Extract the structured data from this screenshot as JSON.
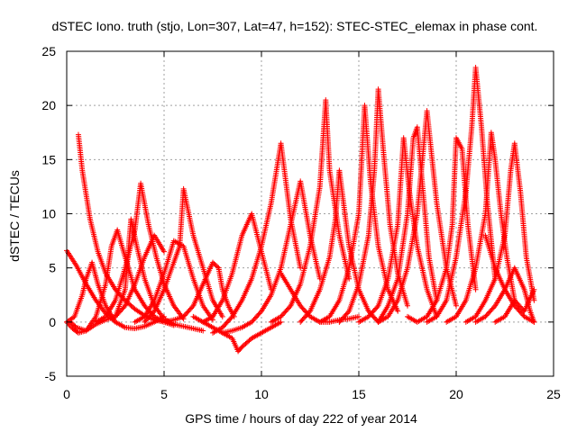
{
  "chart_data": {
    "type": "scatter",
    "title": "dSTEC Iono. truth (stjo, Lon=307, Lat=47, h=152): STEC-STEC_elemax in phase cont.",
    "xlabel": "GPS time / hours of day 222 of year 2014",
    "ylabel": "dSTEC  / TECUs",
    "xlim": [
      0,
      25
    ],
    "ylim": [
      -5,
      25
    ],
    "xticks": [
      0,
      5,
      10,
      15,
      20,
      25
    ],
    "yticks": [
      -5,
      0,
      5,
      10,
      15,
      20,
      25
    ],
    "grid": true,
    "marker": "plus",
    "color": "#ff0000",
    "series": [
      {
        "x": [
          0.0,
          0.5,
          1.0,
          1.5,
          2.0,
          2.5,
          3.0,
          3.5,
          4.0,
          4.5,
          5.0
        ],
        "y": [
          6.6,
          5.2,
          3.5,
          2.0,
          0.8,
          0.0,
          -0.5,
          -0.6,
          -0.4,
          0.0,
          0.5
        ]
      },
      {
        "x": [
          0.6,
          0.8,
          1.2,
          1.6,
          2.0,
          2.5,
          3.0,
          3.5,
          4.0,
          4.5,
          5.0,
          5.5,
          6.0,
          6.5,
          7.0
        ],
        "y": [
          17.3,
          14.0,
          9.5,
          6.5,
          4.5,
          3.0,
          2.0,
          1.2,
          0.6,
          0.2,
          0.0,
          -0.2,
          -0.4,
          -0.6,
          -0.8
        ]
      },
      {
        "x": [
          0.2,
          0.5,
          1.0,
          1.5,
          2.0,
          2.3,
          2.6,
          3.0,
          3.5,
          4.0,
          4.5,
          5.0,
          5.5
        ],
        "y": [
          0.0,
          -0.5,
          -0.8,
          0.5,
          3.5,
          7.0,
          8.5,
          6.0,
          3.0,
          1.5,
          0.5,
          0.0,
          -0.3
        ]
      },
      {
        "x": [
          0.0,
          0.3,
          0.6,
          1.0,
          1.5,
          2.0,
          2.5,
          3.0,
          3.5,
          4.0,
          4.5,
          5.0
        ],
        "y": [
          0.0,
          -0.6,
          -1.0,
          -0.8,
          -0.2,
          0.2,
          0.5,
          1.5,
          3.5,
          6.0,
          8.0,
          6.5
        ]
      },
      {
        "x": [
          0.0,
          0.4,
          0.8,
          1.0,
          1.3,
          1.6,
          2.0,
          2.5
        ],
        "y": [
          0.0,
          0.5,
          2.5,
          4.0,
          5.5,
          3.5,
          1.5,
          0.0
        ]
      },
      {
        "x": [
          1.5,
          2.0,
          2.5,
          3.0,
          3.5,
          3.8,
          4.2,
          4.6,
          5.0,
          5.5,
          6.0
        ],
        "y": [
          0.0,
          0.5,
          2.0,
          5.0,
          8.5,
          12.8,
          9.0,
          6.0,
          3.5,
          1.5,
          0.3
        ]
      },
      {
        "x": [
          2.5,
          3.0,
          3.3,
          3.6,
          4.0,
          4.5,
          5.0,
          5.5
        ],
        "y": [
          0.5,
          3.0,
          9.5,
          7.0,
          4.0,
          1.5,
          0.3,
          -0.2
        ]
      },
      {
        "x": [
          3.5,
          4.0,
          4.5,
          5.0,
          5.5,
          6.0,
          6.5,
          7.0,
          7.5
        ],
        "y": [
          0.0,
          0.5,
          2.0,
          4.5,
          7.5,
          7.0,
          4.0,
          1.5,
          0.2
        ]
      },
      {
        "x": [
          4.0,
          4.5,
          5.0,
          5.5,
          5.8,
          6.0,
          6.5,
          7.0,
          7.5,
          8.0
        ],
        "y": [
          0.0,
          1.0,
          3.0,
          5.5,
          7.0,
          12.3,
          8.0,
          5.0,
          2.0,
          0.5
        ]
      },
      {
        "x": [
          5.0,
          5.5,
          6.0,
          6.5,
          7.0,
          7.5,
          7.8,
          8.0,
          8.3,
          8.6
        ],
        "y": [
          0.0,
          0.2,
          0.5,
          1.5,
          3.5,
          5.5,
          5.0,
          3.0,
          1.5,
          0.5
        ]
      },
      {
        "x": [
          6.5,
          7.0,
          7.5,
          8.0,
          8.5,
          8.8,
          9.0,
          9.5,
          10.0,
          10.5,
          11.0
        ],
        "y": [
          0.5,
          0.0,
          -0.5,
          -1.0,
          -1.5,
          -2.7,
          -2.3,
          -1.5,
          -1.0,
          -0.5,
          0.0
        ]
      },
      {
        "x": [
          7.0,
          7.5,
          8.0,
          8.5,
          9.0,
          9.5,
          10.0,
          10.5
        ],
        "y": [
          0.0,
          0.5,
          2.0,
          4.5,
          8.0,
          10.0,
          6.5,
          3.0
        ]
      },
      {
        "x": [
          7.5,
          8.0,
          8.5,
          9.0,
          9.5,
          10.0,
          10.5,
          11.0,
          11.5,
          12.0
        ],
        "y": [
          -1.0,
          -0.5,
          0.5,
          2.0,
          4.0,
          7.0,
          11.0,
          16.5,
          9.5,
          5.0
        ]
      },
      {
        "x": [
          8.0,
          8.5,
          9.0,
          9.5,
          10.0,
          10.5,
          11.0,
          11.5,
          12.0,
          12.5,
          13.0
        ],
        "y": [
          -1.0,
          -0.8,
          -0.5,
          0.0,
          1.0,
          2.5,
          5.0,
          9.0,
          13.0,
          8.0,
          4.0
        ]
      },
      {
        "x": [
          10.5,
          11.0,
          11.5,
          12.0,
          12.5,
          13.0,
          13.3,
          13.5,
          14.0,
          14.5
        ],
        "y": [
          0.0,
          0.5,
          1.5,
          3.5,
          7.0,
          12.5,
          20.5,
          14.0,
          8.0,
          4.0
        ]
      },
      {
        "x": [
          11.0,
          11.5,
          12.0,
          12.5,
          13.0,
          13.5,
          14.0,
          14.5,
          15.0
        ],
        "y": [
          4.5,
          3.0,
          1.5,
          0.5,
          0.0,
          0.0,
          0.2,
          0.3,
          0.5
        ]
      },
      {
        "x": [
          12.0,
          12.5,
          13.0,
          13.5,
          13.8,
          14.0,
          14.5,
          15.0,
          15.5,
          16.0
        ],
        "y": [
          0.0,
          1.0,
          3.0,
          6.0,
          9.5,
          14.0,
          7.0,
          3.0,
          1.0,
          0.0
        ]
      },
      {
        "x": [
          13.0,
          13.5,
          14.0,
          14.5,
          15.0,
          15.3,
          15.6,
          16.0,
          16.5,
          17.0
        ],
        "y": [
          0.0,
          0.5,
          2.0,
          5.0,
          10.0,
          20.0,
          13.0,
          7.0,
          3.0,
          1.0
        ]
      },
      {
        "x": [
          14.0,
          14.5,
          15.0,
          15.5,
          15.8,
          16.0,
          16.3,
          16.6,
          17.0,
          17.5
        ],
        "y": [
          0.0,
          1.0,
          3.5,
          8.0,
          14.0,
          21.5,
          15.0,
          9.0,
          4.5,
          1.5
        ]
      },
      {
        "x": [
          15.0,
          15.5,
          16.0,
          16.5,
          17.0,
          17.3,
          17.6,
          18.0,
          18.5,
          19.0
        ],
        "y": [
          0.0,
          0.5,
          1.5,
          4.0,
          9.0,
          17.0,
          12.0,
          7.0,
          3.0,
          0.5
        ]
      },
      {
        "x": [
          16.0,
          16.5,
          17.0,
          17.5,
          17.8,
          18.0,
          18.3,
          18.6,
          19.0
        ],
        "y": [
          0.0,
          1.5,
          4.0,
          10.0,
          17.0,
          18.0,
          12.0,
          6.0,
          2.0
        ]
      },
      {
        "x": [
          16.0,
          16.5,
          17.0,
          17.5,
          18.0,
          18.5,
          19.0,
          19.5,
          20.0
        ],
        "y": [
          0.0,
          0.5,
          2.0,
          5.0,
          10.0,
          19.5,
          11.0,
          5.0,
          1.5
        ]
      },
      {
        "x": [
          17.5,
          18.0,
          18.5,
          19.0,
          19.5,
          19.8,
          20.0,
          20.3,
          20.6,
          21.0
        ],
        "y": [
          0.5,
          0.0,
          0.5,
          2.0,
          5.0,
          9.0,
          17.0,
          16.0,
          9.0,
          3.0
        ]
      },
      {
        "x": [
          18.5,
          19.0,
          19.5,
          20.0,
          20.5,
          20.8,
          21.0,
          21.3,
          21.6,
          22.0
        ],
        "y": [
          0.0,
          0.5,
          2.0,
          6.0,
          12.0,
          18.0,
          23.5,
          18.0,
          11.0,
          4.0
        ]
      },
      {
        "x": [
          19.5,
          20.0,
          20.5,
          21.0,
          21.5,
          21.8,
          22.0,
          22.3,
          22.6,
          23.0
        ],
        "y": [
          0.0,
          0.5,
          2.0,
          5.0,
          10.0,
          17.5,
          15.0,
          10.0,
          6.0,
          2.0
        ]
      },
      {
        "x": [
          20.5,
          21.0,
          21.5,
          22.0,
          22.5,
          22.8,
          23.0,
          23.3,
          23.6,
          24.0
        ],
        "y": [
          0.0,
          0.5,
          2.0,
          4.0,
          8.0,
          14.0,
          16.5,
          12.0,
          6.0,
          2.0
        ]
      },
      {
        "x": [
          21.0,
          21.5,
          22.0,
          22.5,
          23.0,
          23.5,
          23.8,
          24.0
        ],
        "y": [
          0.0,
          0.5,
          1.5,
          3.0,
          5.0,
          3.0,
          1.0,
          0.0
        ]
      },
      {
        "x": [
          21.5,
          22.0,
          22.5,
          23.0,
          23.5,
          24.0
        ],
        "y": [
          8.0,
          5.0,
          3.0,
          1.5,
          0.5,
          0.0
        ]
      },
      {
        "x": [
          22.0,
          22.5,
          23.0,
          23.5,
          24.0
        ],
        "y": [
          0.0,
          0.5,
          2.0,
          1.0,
          3.0
        ]
      }
    ]
  }
}
